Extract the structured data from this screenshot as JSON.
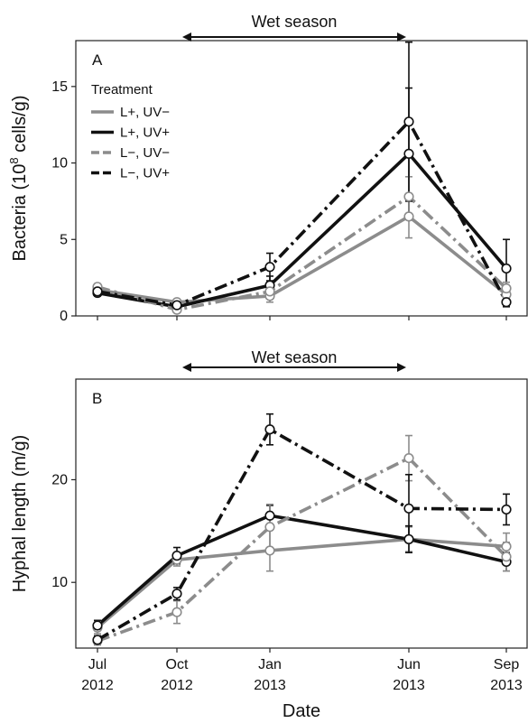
{
  "chart_data": [
    {
      "type": "line",
      "panel_label": "A",
      "ylabel": "Bacteria (10",
      "ylabel_sup": "8",
      "ylabel_tail": " cells/g)",
      "xlabel": "Date",
      "ylim": [
        0,
        18
      ],
      "yticks": [
        0,
        5,
        10,
        15
      ],
      "grid": false,
      "season_label": "Wet season",
      "season_range": [
        "Oct 2012",
        "Jun 2013"
      ],
      "legend_title": "Treatment",
      "legend_position": "top-left",
      "x": [
        "Jul 2012",
        "Oct 2012",
        "Jan 2013",
        "Jun 2013",
        "Sep 2013"
      ],
      "series": [
        {
          "name": "L+, UV−",
          "color": "#8c8c8c",
          "style": "solid",
          "values": [
            1.7,
            0.9,
            1.3,
            6.5,
            1.4
          ],
          "err": [
            0.2,
            0.2,
            0.4,
            1.4,
            0.4
          ]
        },
        {
          "name": "L+, UV+",
          "color": "#111111",
          "style": "solid",
          "values": [
            1.5,
            0.6,
            2.0,
            10.6,
            3.1
          ],
          "err": [
            0.2,
            0.2,
            0.6,
            4.3,
            1.9
          ]
        },
        {
          "name": "L−, UV−",
          "color": "#8c8c8c",
          "style": "dash",
          "values": [
            1.9,
            0.4,
            1.6,
            7.8,
            1.8
          ],
          "err": [
            0.2,
            0.1,
            0.4,
            1.3,
            0.4
          ]
        },
        {
          "name": "L−, UV+",
          "color": "#111111",
          "style": "dash",
          "values": [
            1.6,
            0.7,
            3.2,
            12.7,
            0.9
          ],
          "err": [
            0.2,
            0.2,
            0.9,
            5.2,
            0.3
          ]
        }
      ]
    },
    {
      "type": "line",
      "panel_label": "B",
      "ylabel": "Hyphal length (m/g)",
      "xlabel": "Date",
      "ylim": [
        3.6,
        29.8
      ],
      "yticks": [
        10,
        20
      ],
      "grid": false,
      "season_label": "Wet season",
      "season_range": [
        "Oct 2012",
        "Jun 2013"
      ],
      "x": [
        "Jul 2012",
        "Oct 2012",
        "Jan 2013",
        "Jun 2013",
        "Sep 2013"
      ],
      "series": [
        {
          "name": "L+, UV−",
          "color": "#8c8c8c",
          "style": "solid",
          "values": [
            5.6,
            12.2,
            13.1,
            14.2,
            13.5
          ],
          "err": [
            0.6,
            0.6,
            2.0,
            1.2,
            1.3
          ]
        },
        {
          "name": "L+, UV+",
          "color": "#111111",
          "style": "solid",
          "values": [
            5.8,
            12.6,
            16.5,
            14.2,
            12.0
          ],
          "err": [
            0.5,
            0.8,
            1.0,
            1.3,
            0.9
          ]
        },
        {
          "name": "L−, UV−",
          "color": "#8c8c8c",
          "style": "dash",
          "values": [
            4.3,
            7.1,
            15.4,
            22.1,
            12.5
          ],
          "err": [
            0.4,
            1.1,
            2.2,
            2.2,
            1.4
          ]
        },
        {
          "name": "L−, UV+",
          "color": "#111111",
          "style": "dash",
          "values": [
            4.4,
            8.9,
            24.9,
            17.2,
            17.1
          ],
          "err": [
            0.4,
            0.6,
            1.5,
            3.3,
            1.5
          ]
        }
      ]
    }
  ],
  "x_tick_labels": [
    {
      "month": "Jul",
      "year": "2012"
    },
    {
      "month": "Oct",
      "year": "2012"
    },
    {
      "month": "Jan",
      "year": "2013"
    },
    {
      "month": "Jun",
      "year": "2013"
    },
    {
      "month": "Sep",
      "year": "2013"
    }
  ]
}
